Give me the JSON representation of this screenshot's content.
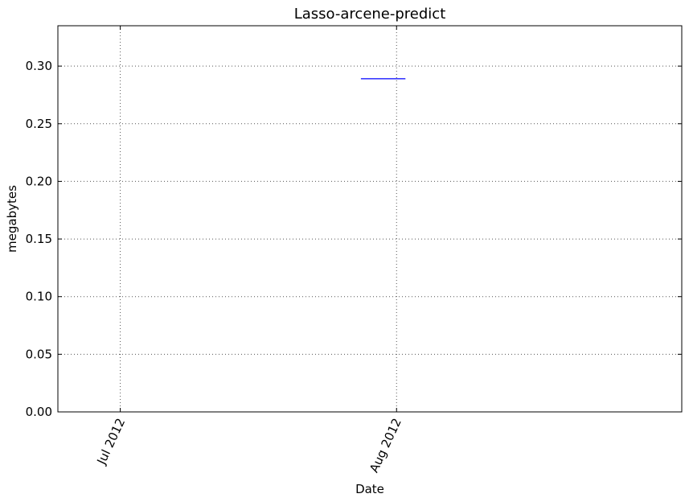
{
  "chart_data": {
    "type": "line",
    "title": "Lasso-arcene-predict",
    "xlabel": "Date",
    "ylabel": "megabytes",
    "x_axis_type": "date",
    "xlim": [
      "2012-06-24",
      "2012-09-02"
    ],
    "ylim": [
      0,
      0.335
    ],
    "x_ticks": [
      {
        "value": "2012-07-01",
        "label": "Jul 2012"
      },
      {
        "value": "2012-08-01",
        "label": "Aug 2012"
      }
    ],
    "y_ticks": [
      {
        "value": 0.0,
        "label": "0.00"
      },
      {
        "value": 0.05,
        "label": "0.05"
      },
      {
        "value": 0.1,
        "label": "0.10"
      },
      {
        "value": 0.15,
        "label": "0.15"
      },
      {
        "value": 0.2,
        "label": "0.20"
      },
      {
        "value": 0.25,
        "label": "0.25"
      },
      {
        "value": 0.3,
        "label": "0.30"
      }
    ],
    "grid": true,
    "series": [
      {
        "color": "#0000ff",
        "points": [
          {
            "x": "2012-07-28",
            "y": 0.289
          },
          {
            "x": "2012-08-02",
            "y": 0.289
          }
        ]
      }
    ]
  }
}
